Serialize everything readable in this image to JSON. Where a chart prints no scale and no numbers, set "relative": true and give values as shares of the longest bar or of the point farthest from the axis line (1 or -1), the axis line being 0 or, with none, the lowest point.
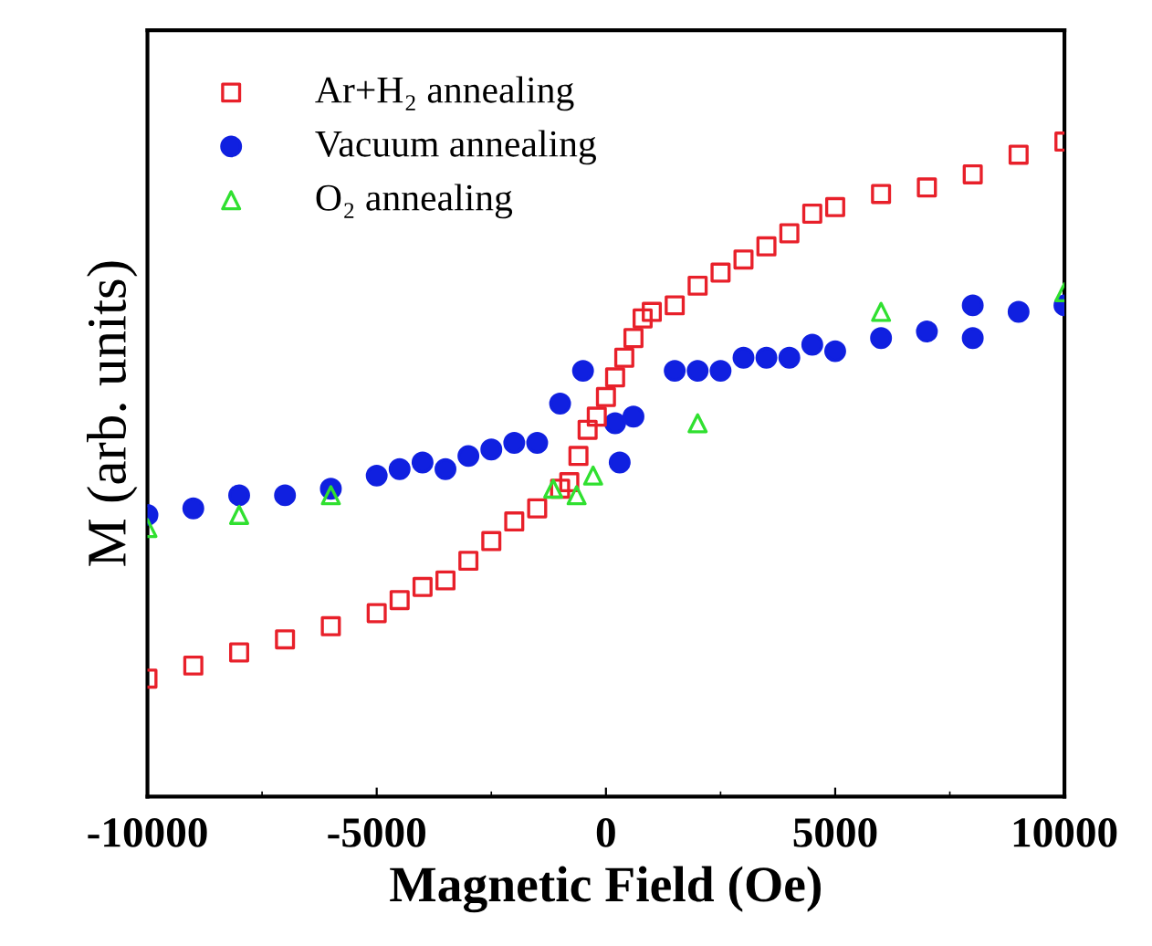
{
  "chart_data": {
    "type": "scatter",
    "xlabel": "Magnetic Field (Oe)",
    "ylabel": "M (arb. units)",
    "relative": true,
    "xlim": [
      -10000,
      10000
    ],
    "xticks": [
      -10000,
      -5000,
      0,
      5000,
      10000
    ],
    "legend": "top left",
    "grid": false,
    "series": [
      {
        "name": "Ar+H₂ annealing",
        "color": "#e8202a",
        "marker": "square",
        "x": [
          -10000,
          -9000,
          -8000,
          -7000,
          -6000,
          -5000,
          -4500,
          -4000,
          -3500,
          -3000,
          -2500,
          -2000,
          -1500,
          -1000,
          -800,
          -600,
          -400,
          -200,
          0,
          200,
          400,
          600,
          800,
          1000,
          1500,
          2000,
          2500,
          3000,
          3500,
          4000,
          4500,
          5000,
          6000,
          7000,
          8000,
          9000,
          10000
        ],
        "values": [
          0.18,
          0.2,
          0.22,
          0.24,
          0.26,
          0.28,
          0.3,
          0.32,
          0.33,
          0.36,
          0.39,
          0.42,
          0.44,
          0.47,
          0.48,
          0.52,
          0.56,
          0.58,
          0.61,
          0.64,
          0.67,
          0.7,
          0.73,
          0.74,
          0.75,
          0.78,
          0.8,
          0.82,
          0.84,
          0.86,
          0.89,
          0.9,
          0.92,
          0.93,
          0.95,
          0.98,
          1
        ]
      },
      {
        "name": "Vacuum annealing",
        "color": "#1020e0",
        "marker": "circle",
        "x": [
          -10000,
          -9000,
          -8000,
          -7000,
          -6000,
          -5000,
          -4500,
          -4000,
          -3500,
          -3000,
          -2500,
          -2000,
          -1500,
          -1000,
          -500,
          200,
          300,
          600,
          1500,
          2000,
          2500,
          3000,
          3500,
          4000,
          4500,
          5000,
          6000,
          7000,
          8000,
          8000,
          9000,
          10000
        ],
        "values": [
          0.43,
          0.44,
          0.46,
          0.46,
          0.47,
          0.49,
          0.5,
          0.51,
          0.5,
          0.52,
          0.53,
          0.54,
          0.54,
          0.6,
          0.65,
          0.57,
          0.51,
          0.58,
          0.65,
          0.65,
          0.65,
          0.67,
          0.67,
          0.67,
          0.69,
          0.68,
          0.7,
          0.71,
          0.7,
          0.75,
          0.74,
          0.75
        ]
      },
      {
        "name": "O₂ annealing",
        "color": "#30e030",
        "marker": "triangle",
        "x": [
          -10000,
          -8000,
          -6000,
          -1150,
          -640,
          -280,
          2000,
          6000,
          10000
        ],
        "values": [
          0.41,
          0.43,
          0.46,
          0.47,
          0.46,
          0.49,
          0.57,
          0.74,
          0.77
        ]
      }
    ]
  }
}
